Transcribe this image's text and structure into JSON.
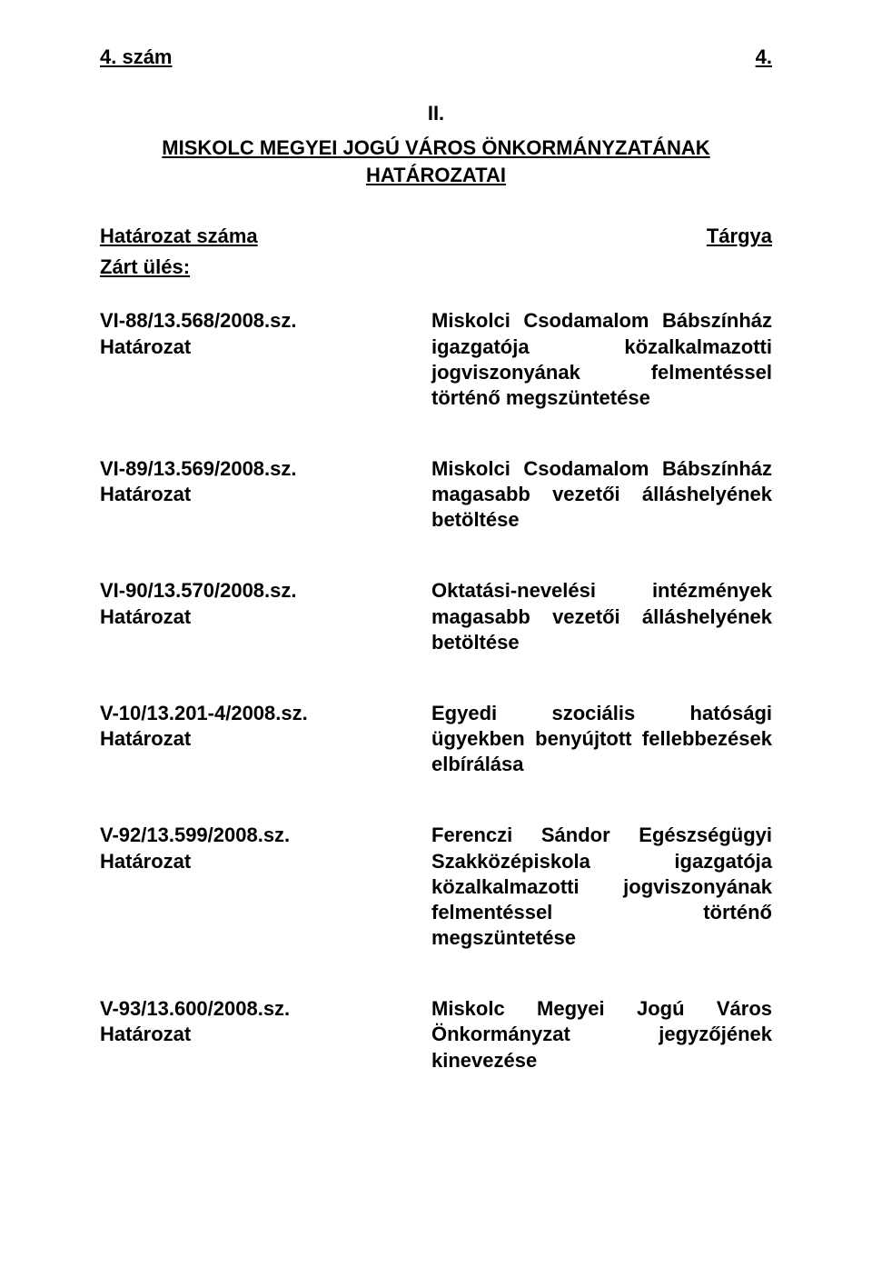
{
  "header": {
    "left": "4. szám",
    "right": "4."
  },
  "section_number": "II.",
  "title_line1": "MISKOLC MEGYEI JOGÚ VÁROS ÖNKORMÁNYZATÁNAK",
  "title_line2": "HATÁROZATAI",
  "columns": {
    "left": "Határozat száma",
    "right": "Tárgya"
  },
  "session_label": "Zárt ülés:",
  "entries": [
    {
      "ref": "VI-88/13.568/2008.sz.",
      "label": "Határozat",
      "desc": "Miskolci Csodamalom Bábszínház igazgatója közalkalmazotti jogviszonyának felmentéssel történő megszüntetése"
    },
    {
      "ref": "VI-89/13.569/2008.sz.",
      "label": "Határozat",
      "desc": "Miskolci Csodamalom Bábszínház magasabb vezetői álláshelyének betöltése"
    },
    {
      "ref": "VI-90/13.570/2008.sz.",
      "label": "Határozat",
      "desc": "Oktatási-nevelési intézmények magasabb vezetői álláshelyének betöltése"
    },
    {
      "ref": "V-10/13.201-4/2008.sz.",
      "label": "Határozat",
      "desc": "Egyedi szociális hatósági ügyekben benyújtott fellebbezések elbírálása"
    },
    {
      "ref": "V-92/13.599/2008.sz.",
      "label": "Határozat",
      "desc": "Ferenczi Sándor Egészségügyi Szakközépiskola igazgatója közalkalmazotti jogviszonyának felmentéssel történő megszüntetése"
    },
    {
      "ref": "V-93/13.600/2008.sz.",
      "label": "Határozat",
      "desc": "Miskolc Megyei Jogú Város Önkormányzat jegyzőjének kinevezése"
    }
  ]
}
